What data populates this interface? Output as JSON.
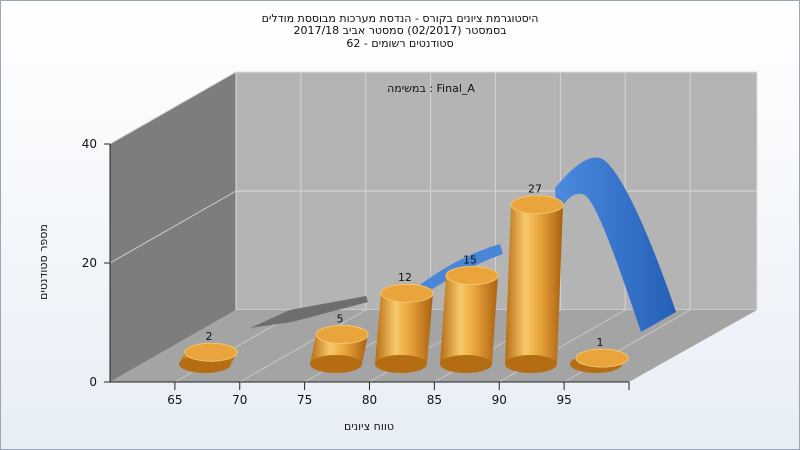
{
  "chart_data": {
    "type": "bar",
    "title_lines": [
      "היסטוגרמת ציונים בקורס - הנדסת מערכות מבוססת מודלים",
      "בסמסטר  (02/2017)  סמסטר אביב 2017/18",
      "סטודנטים רשומים - 62"
    ],
    "legend": "במשימה : Final_A",
    "xlabel": "טווח ציונים",
    "ylabel": "מספר סטודנטים",
    "x_ticks": [
      "65",
      "70",
      "75",
      "80",
      "85",
      "90",
      "95"
    ],
    "y_ticks": [
      "0",
      "20",
      "40"
    ],
    "ylim": [
      0,
      40
    ],
    "bars": [
      {
        "bin": "60-65",
        "value": 2
      },
      {
        "bin": "70-75",
        "value": 5
      },
      {
        "bin": "75-80",
        "value": 12
      },
      {
        "bin": "80-85",
        "value": 15
      },
      {
        "bin": "85-90",
        "value": 27
      },
      {
        "bin": "90-95",
        "value": 1
      }
    ],
    "colors": {
      "bar": "#e8a33a",
      "curve": "#2f6cc4",
      "wall": "#808080",
      "back": "#b4b4b4"
    }
  }
}
